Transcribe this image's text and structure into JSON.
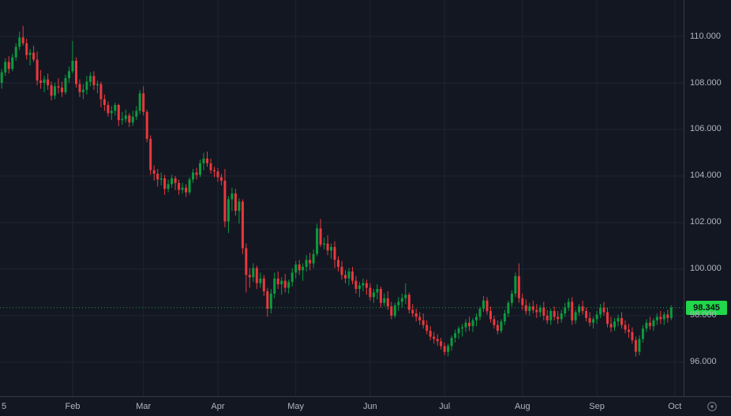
{
  "chart_data": {
    "type": "candlestick",
    "title": "",
    "last_price": 98.345,
    "last_price_label": "98.345",
    "price_axis": {
      "ticks": [
        110,
        108,
        106,
        104,
        102,
        100,
        98,
        96
      ],
      "tick_labels": [
        "110.000",
        "108.000",
        "106.000",
        "104.000",
        "102.000",
        "100.000",
        "98.000",
        "96.000"
      ],
      "ylim": [
        94.54,
        111.56
      ]
    },
    "time_axis": {
      "ticks": [
        {
          "label": "5",
          "index": 0
        },
        {
          "label": "Feb",
          "index": 20
        },
        {
          "label": "Mar",
          "index": 40
        },
        {
          "label": "Apr",
          "index": 61
        },
        {
          "label": "May",
          "index": 83
        },
        {
          "label": "Jun",
          "index": 104
        },
        {
          "label": "Jul",
          "index": 125
        },
        {
          "label": "Aug",
          "index": 147
        },
        {
          "label": "Sep",
          "index": 168
        },
        {
          "label": "Oct",
          "index": 190
        }
      ]
    },
    "legend_position": "none",
    "grid": true,
    "colors": {
      "background": "#131722",
      "grid": "#1f2432",
      "axis_text": "#b2b5be",
      "axis_line": "#363a45",
      "up": "#0b9b3e",
      "down": "#e8393d",
      "price_label_bg": "#21d74a",
      "price_label_text": "#0b0e14",
      "icon": "#787b86"
    },
    "candles": [
      [
        108.0,
        108.6,
        107.75,
        108.45
      ],
      [
        108.45,
        109.05,
        108.3,
        108.9
      ],
      [
        108.9,
        109.15,
        108.4,
        108.6
      ],
      [
        108.6,
        109.25,
        108.5,
        109.1
      ],
      [
        109.1,
        109.7,
        108.95,
        109.55
      ],
      [
        109.55,
        110.2,
        109.4,
        109.95
      ],
      [
        109.95,
        110.45,
        109.6,
        109.7
      ],
      [
        109.7,
        109.9,
        109.0,
        109.2
      ],
      [
        109.2,
        109.45,
        108.75,
        109.3
      ],
      [
        109.3,
        109.6,
        108.9,
        109.0
      ],
      [
        109.0,
        109.35,
        107.9,
        108.1
      ],
      [
        108.1,
        108.55,
        107.75,
        108.0
      ],
      [
        108.0,
        108.3,
        107.6,
        108.15
      ],
      [
        108.15,
        108.4,
        107.7,
        107.9
      ],
      [
        107.9,
        108.05,
        107.25,
        107.45
      ],
      [
        107.45,
        108.0,
        107.3,
        107.85
      ],
      [
        107.85,
        108.2,
        107.55,
        107.8
      ],
      [
        107.8,
        108.05,
        107.4,
        107.6
      ],
      [
        107.6,
        108.35,
        107.5,
        108.2
      ],
      [
        108.2,
        108.7,
        108.0,
        108.5
      ],
      [
        108.5,
        109.8,
        108.4,
        108.95
      ],
      [
        108.95,
        109.1,
        107.8,
        107.95
      ],
      [
        107.95,
        108.15,
        107.4,
        107.6
      ],
      [
        107.6,
        107.95,
        107.3,
        107.7
      ],
      [
        107.7,
        108.3,
        107.5,
        108.05
      ],
      [
        108.05,
        108.45,
        107.85,
        108.3
      ],
      [
        108.3,
        108.5,
        107.7,
        107.9
      ],
      [
        107.9,
        108.1,
        107.55,
        107.95
      ],
      [
        107.95,
        108.05,
        106.95,
        107.3
      ],
      [
        107.3,
        107.5,
        106.8,
        107.05
      ],
      [
        107.05,
        107.2,
        106.55,
        106.7
      ],
      [
        106.7,
        107.0,
        106.4,
        106.8
      ],
      [
        106.8,
        107.15,
        106.6,
        107.05
      ],
      [
        107.05,
        107.1,
        106.15,
        106.4
      ],
      [
        106.4,
        106.75,
        106.2,
        106.45
      ],
      [
        106.45,
        106.85,
        106.3,
        106.6
      ],
      [
        106.6,
        106.7,
        106.1,
        106.3
      ],
      [
        106.3,
        106.8,
        106.15,
        106.55
      ],
      [
        106.55,
        107.0,
        106.4,
        106.8
      ],
      [
        106.8,
        107.7,
        106.65,
        107.55
      ],
      [
        107.55,
        107.85,
        106.6,
        106.75
      ],
      [
        106.75,
        106.85,
        105.45,
        105.6
      ],
      [
        105.6,
        105.75,
        104.05,
        104.25
      ],
      [
        104.25,
        104.45,
        103.8,
        104.1
      ],
      [
        104.1,
        104.3,
        103.55,
        103.85
      ],
      [
        103.85,
        104.15,
        103.6,
        103.9
      ],
      [
        103.9,
        104.05,
        103.2,
        103.45
      ],
      [
        103.45,
        103.85,
        103.3,
        103.65
      ],
      [
        103.65,
        104.05,
        103.5,
        103.9
      ],
      [
        103.9,
        104.0,
        103.4,
        103.7
      ],
      [
        103.7,
        103.85,
        103.2,
        103.4
      ],
      [
        103.4,
        103.7,
        103.25,
        103.5
      ],
      [
        103.5,
        103.65,
        103.1,
        103.3
      ],
      [
        103.3,
        103.95,
        103.2,
        103.85
      ],
      [
        103.85,
        104.3,
        103.7,
        104.15
      ],
      [
        104.15,
        104.35,
        103.85,
        104.05
      ],
      [
        104.05,
        104.7,
        103.95,
        104.55
      ],
      [
        104.55,
        105.0,
        104.25,
        104.75
      ],
      [
        104.75,
        105.05,
        104.4,
        104.55
      ],
      [
        104.55,
        104.75,
        104.1,
        104.25
      ],
      [
        104.25,
        104.4,
        103.95,
        104.2
      ],
      [
        104.2,
        104.35,
        103.75,
        103.95
      ],
      [
        103.95,
        104.1,
        103.6,
        103.8
      ],
      [
        103.8,
        104.3,
        101.8,
        102.05
      ],
      [
        102.05,
        103.15,
        101.55,
        103.0
      ],
      [
        103.0,
        103.5,
        102.5,
        103.25
      ],
      [
        103.25,
        103.45,
        102.3,
        102.5
      ],
      [
        102.5,
        103.05,
        101.95,
        102.9
      ],
      [
        102.9,
        103.0,
        100.65,
        100.9
      ],
      [
        100.9,
        101.1,
        99.0,
        99.75
      ],
      [
        99.75,
        100.05,
        99.2,
        99.65
      ],
      [
        99.65,
        100.25,
        99.45,
        100.05
      ],
      [
        100.05,
        100.15,
        99.15,
        99.4
      ],
      [
        99.4,
        99.85,
        99.2,
        99.6
      ],
      [
        99.6,
        99.75,
        98.85,
        99.05
      ],
      [
        99.05,
        99.2,
        97.95,
        98.3
      ],
      [
        98.3,
        99.15,
        98.1,
        98.95
      ],
      [
        98.95,
        99.85,
        98.75,
        99.6
      ],
      [
        99.6,
        99.9,
        99.15,
        99.35
      ],
      [
        99.35,
        99.65,
        98.9,
        99.5
      ],
      [
        99.5,
        99.8,
        99.0,
        99.2
      ],
      [
        99.2,
        99.55,
        98.95,
        99.45
      ],
      [
        99.45,
        100.05,
        99.25,
        99.85
      ],
      [
        99.85,
        100.35,
        99.6,
        100.2
      ],
      [
        100.2,
        100.4,
        99.75,
        99.95
      ],
      [
        99.95,
        100.25,
        99.5,
        100.1
      ],
      [
        100.1,
        100.6,
        99.9,
        100.4
      ],
      [
        100.4,
        100.7,
        99.95,
        100.25
      ],
      [
        100.25,
        100.85,
        100.05,
        100.65
      ],
      [
        100.65,
        101.95,
        100.55,
        101.75
      ],
      [
        101.75,
        102.15,
        100.95,
        101.05
      ],
      [
        101.05,
        101.35,
        100.85,
        101.1
      ],
      [
        101.1,
        101.45,
        100.6,
        100.8
      ],
      [
        100.8,
        101.1,
        100.45,
        100.95
      ],
      [
        100.95,
        101.2,
        100.05,
        100.4
      ],
      [
        100.4,
        100.55,
        99.9,
        100.1
      ],
      [
        100.1,
        100.35,
        99.55,
        99.75
      ],
      [
        99.75,
        99.95,
        99.4,
        99.6
      ],
      [
        99.6,
        100.05,
        99.3,
        99.9
      ],
      [
        99.9,
        100.1,
        99.35,
        99.5
      ],
      [
        99.5,
        99.7,
        98.95,
        99.15
      ],
      [
        99.15,
        99.45,
        98.8,
        99.3
      ],
      [
        99.3,
        99.6,
        99.05,
        99.4
      ],
      [
        99.4,
        99.55,
        98.9,
        99.2
      ],
      [
        99.2,
        99.4,
        98.65,
        98.8
      ],
      [
        98.8,
        99.15,
        98.55,
        99.0
      ],
      [
        99.0,
        99.35,
        98.7,
        99.15
      ],
      [
        99.15,
        99.25,
        98.35,
        98.55
      ],
      [
        98.55,
        98.95,
        98.4,
        98.75
      ],
      [
        98.75,
        99.05,
        98.25,
        98.4
      ],
      [
        98.4,
        98.6,
        97.85,
        98.0
      ],
      [
        98.0,
        98.55,
        97.9,
        98.45
      ],
      [
        98.45,
        98.8,
        98.2,
        98.6
      ],
      [
        98.6,
        98.95,
        98.35,
        98.75
      ],
      [
        98.75,
        99.4,
        98.5,
        98.9
      ],
      [
        98.9,
        99.0,
        98.1,
        98.25
      ],
      [
        98.25,
        98.5,
        97.95,
        98.1
      ],
      [
        98.1,
        98.3,
        97.75,
        97.95
      ],
      [
        97.95,
        98.15,
        97.6,
        97.8
      ],
      [
        97.8,
        98.1,
        97.45,
        97.6
      ],
      [
        97.6,
        97.8,
        97.2,
        97.35
      ],
      [
        97.35,
        97.55,
        96.95,
        97.1
      ],
      [
        97.1,
        97.3,
        96.8,
        97.0
      ],
      [
        97.0,
        97.2,
        96.7,
        96.9
      ],
      [
        96.9,
        97.05,
        96.55,
        96.7
      ],
      [
        96.7,
        96.85,
        96.3,
        96.45
      ],
      [
        96.45,
        96.8,
        96.25,
        96.7
      ],
      [
        96.7,
        97.15,
        96.5,
        97.05
      ],
      [
        97.05,
        97.4,
        96.85,
        97.25
      ],
      [
        97.25,
        97.55,
        97.0,
        97.45
      ],
      [
        97.45,
        97.65,
        97.1,
        97.5
      ],
      [
        97.5,
        97.85,
        97.3,
        97.7
      ],
      [
        97.7,
        97.95,
        97.35,
        97.55
      ],
      [
        97.55,
        97.9,
        97.3,
        97.8
      ],
      [
        97.8,
        98.1,
        97.55,
        97.95
      ],
      [
        97.95,
        98.4,
        97.8,
        98.3
      ],
      [
        98.3,
        98.85,
        98.15,
        98.65
      ],
      [
        98.65,
        98.8,
        98.05,
        98.2
      ],
      [
        98.2,
        98.4,
        97.7,
        97.85
      ],
      [
        97.85,
        98.0,
        97.45,
        97.6
      ],
      [
        97.6,
        97.8,
        97.2,
        97.35
      ],
      [
        97.35,
        97.85,
        97.25,
        97.75
      ],
      [
        97.75,
        98.25,
        97.6,
        98.1
      ],
      [
        98.1,
        98.65,
        97.95,
        98.55
      ],
      [
        98.55,
        99.1,
        98.4,
        98.95
      ],
      [
        98.95,
        99.85,
        98.8,
        99.7
      ],
      [
        99.7,
        100.25,
        98.55,
        98.75
      ],
      [
        98.75,
        98.95,
        98.25,
        98.45
      ],
      [
        98.45,
        98.7,
        98.05,
        98.2
      ],
      [
        98.2,
        98.55,
        98.0,
        98.4
      ],
      [
        98.4,
        98.65,
        98.1,
        98.25
      ],
      [
        98.25,
        98.5,
        97.9,
        98.15
      ],
      [
        98.15,
        98.45,
        97.95,
        98.35
      ],
      [
        98.35,
        98.6,
        97.8,
        98.0
      ],
      [
        98.0,
        98.25,
        97.65,
        97.8
      ],
      [
        97.8,
        98.3,
        97.6,
        98.2
      ],
      [
        98.2,
        98.4,
        97.8,
        97.95
      ],
      [
        97.95,
        98.2,
        97.65,
        97.85
      ],
      [
        97.85,
        98.25,
        97.7,
        98.1
      ],
      [
        98.1,
        98.55,
        97.95,
        98.35
      ],
      [
        98.35,
        98.75,
        98.2,
        98.6
      ],
      [
        98.6,
        98.8,
        97.6,
        97.8
      ],
      [
        97.8,
        98.25,
        97.65,
        98.15
      ],
      [
        98.15,
        98.5,
        98.0,
        98.4
      ],
      [
        98.4,
        98.65,
        98.05,
        98.2
      ],
      [
        98.2,
        98.35,
        97.75,
        97.9
      ],
      [
        97.9,
        98.15,
        97.55,
        97.7
      ],
      [
        97.7,
        97.95,
        97.45,
        97.85
      ],
      [
        97.85,
        98.2,
        97.65,
        98.05
      ],
      [
        98.05,
        98.5,
        97.9,
        98.35
      ],
      [
        98.35,
        98.6,
        98.0,
        98.15
      ],
      [
        98.15,
        98.35,
        97.5,
        97.65
      ],
      [
        97.65,
        97.95,
        97.3,
        97.5
      ],
      [
        97.5,
        97.9,
        97.35,
        97.75
      ],
      [
        97.75,
        98.05,
        97.55,
        97.9
      ],
      [
        97.9,
        98.15,
        97.45,
        97.6
      ],
      [
        97.6,
        97.8,
        97.25,
        97.4
      ],
      [
        97.4,
        97.65,
        97.05,
        97.3
      ],
      [
        97.3,
        97.5,
        96.8,
        96.95
      ],
      [
        96.95,
        97.1,
        96.25,
        96.45
      ],
      [
        96.45,
        97.15,
        96.3,
        97.0
      ],
      [
        97.0,
        97.6,
        96.85,
        97.45
      ],
      [
        97.45,
        97.85,
        97.3,
        97.7
      ],
      [
        97.7,
        97.95,
        97.4,
        97.55
      ],
      [
        97.55,
        97.9,
        97.35,
        97.8
      ],
      [
        97.8,
        98.1,
        97.6,
        97.95
      ],
      [
        97.95,
        98.2,
        97.65,
        97.85
      ],
      [
        97.85,
        98.15,
        97.6,
        98.05
      ],
      [
        98.05,
        98.25,
        97.7,
        97.9
      ],
      [
        97.9,
        98.45,
        97.8,
        98.345
      ]
    ]
  }
}
